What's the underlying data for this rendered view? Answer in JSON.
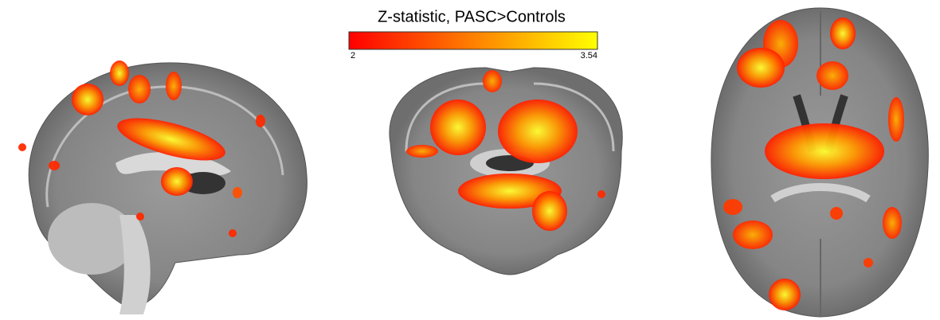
{
  "colorbar": {
    "title": "Z-statistic, PASC>Controls",
    "min": 2,
    "max": 3.54,
    "colors": [
      "#ff0000",
      "#ff8000",
      "#ffff00"
    ]
  }
}
